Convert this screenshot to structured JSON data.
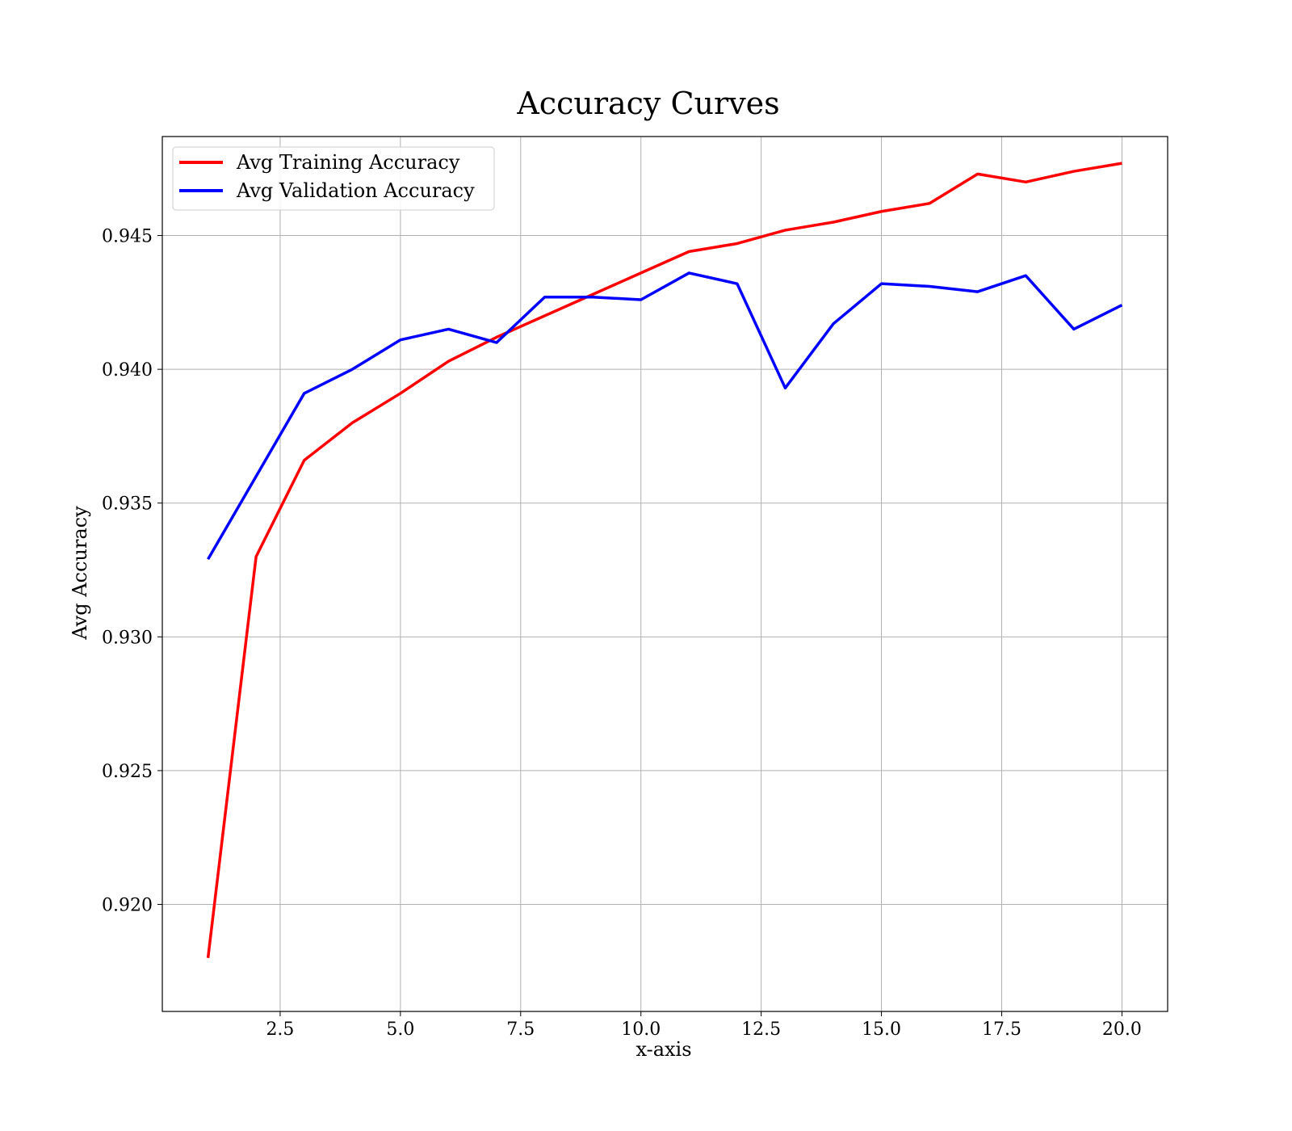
{
  "chart_data": {
    "type": "line",
    "title": "Accuracy Curves",
    "xlabel": "x-axis",
    "ylabel": "Avg Accuracy",
    "xlim": [
      0.05,
      20.95
    ],
    "ylim": [
      0.916,
      0.9487
    ],
    "xticks": [
      2.5,
      5.0,
      7.5,
      10.0,
      12.5,
      15.0,
      17.5,
      20.0
    ],
    "xtick_labels": [
      "2.5",
      "5.0",
      "7.5",
      "10.0",
      "12.5",
      "15.0",
      "17.5",
      "20.0"
    ],
    "yticks": [
      0.92,
      0.925,
      0.93,
      0.935,
      0.94,
      0.945
    ],
    "ytick_labels": [
      "0.920",
      "0.925",
      "0.930",
      "0.935",
      "0.940",
      "0.945"
    ],
    "grid": true,
    "legend_position": "top-left",
    "x": [
      1,
      2,
      3,
      4,
      5,
      6,
      7,
      8,
      9,
      10,
      11,
      12,
      13,
      14,
      15,
      16,
      17,
      18,
      19,
      20
    ],
    "series": [
      {
        "name": "Avg Training Accuracy",
        "color": "#ff0000",
        "values": [
          0.918,
          0.933,
          0.9366,
          0.938,
          0.9391,
          0.9403,
          0.9412,
          0.942,
          0.9428,
          0.9436,
          0.9444,
          0.9447,
          0.9452,
          0.9455,
          0.9459,
          0.9462,
          0.9473,
          0.947,
          0.9474,
          0.9477
        ]
      },
      {
        "name": "Avg Validation Accuracy",
        "color": "#0000ff",
        "values": [
          0.9329,
          0.936,
          0.9391,
          0.94,
          0.9411,
          0.9415,
          0.941,
          0.9427,
          0.9427,
          0.9426,
          0.9436,
          0.9432,
          0.9393,
          0.9417,
          0.9432,
          0.9431,
          0.9429,
          0.9435,
          0.9415,
          0.9424
        ]
      }
    ]
  }
}
